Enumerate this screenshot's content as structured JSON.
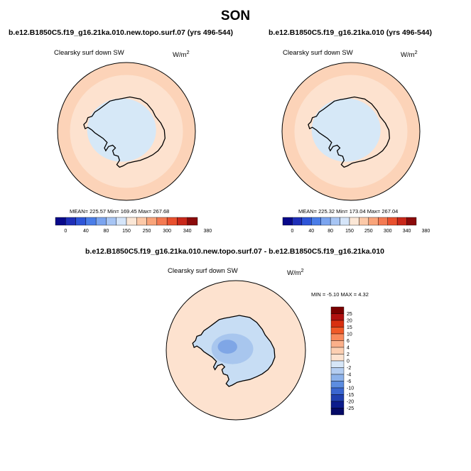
{
  "title": "SON",
  "colors": {
    "ocean": "#fde2cf",
    "ring_outer": "#fcd3b8",
    "ice": "#d6e8f7",
    "ice_diff_light": "#c7ddf4",
    "ice_diff_mid": "#a8c6ee",
    "ice_diff_dark": "#7fa6e6",
    "coast": "#000000"
  },
  "chart_data": [
    {
      "type": "map",
      "panel": "top-left",
      "title": "b.e12.B1850C5.f19_g16.21ka.010.new.topo.surf.07 (yrs 496-544)",
      "variable": "Clearsky surf down SW",
      "units_base": "W/m",
      "units_exp": "2",
      "stats": "MEAN= 225.57  Min= 169.45  Max= 267.68",
      "mean": 225.57,
      "min": 169.45,
      "max": 267.68,
      "colorbar": {
        "orientation": "horizontal",
        "levels": [
          "0",
          "40",
          "80",
          "150",
          "250",
          "300",
          "340",
          "380"
        ],
        "colors": [
          "#08088a",
          "#1f2fb8",
          "#2e55d8",
          "#4a7de8",
          "#7ba4ef",
          "#a7c5f4",
          "#d5e5f9",
          "#fbe7d6",
          "#fcc9a8",
          "#f9a47a",
          "#f47a52",
          "#e9502e",
          "#c9281a",
          "#8b0a0a"
        ]
      }
    },
    {
      "type": "map",
      "panel": "top-right",
      "title": "b.e12.B1850C5.f19_g16.21ka.010 (yrs 496-544)",
      "variable": "Clearsky surf down SW",
      "units_base": "W/m",
      "units_exp": "2",
      "stats": "MEAN= 225.32  Min= 173.04  Max= 267.04",
      "mean": 225.32,
      "min": 173.04,
      "max": 267.04,
      "colorbar": {
        "orientation": "horizontal",
        "levels": [
          "0",
          "40",
          "80",
          "150",
          "250",
          "300",
          "340",
          "380"
        ],
        "colors": [
          "#08088a",
          "#1f2fb8",
          "#2e55d8",
          "#4a7de8",
          "#7ba4ef",
          "#a7c5f4",
          "#d5e5f9",
          "#fbe7d6",
          "#fcc9a8",
          "#f9a47a",
          "#f47a52",
          "#e9502e",
          "#c9281a",
          "#8b0a0a"
        ]
      }
    },
    {
      "type": "map",
      "panel": "bottom",
      "title": "b.e12.B1850C5.f19_g16.21ka.010.new.topo.surf.07 - b.e12.B1850C5.f19_g16.21ka.010",
      "variable": "Clearsky surf down SW",
      "units_base": "W/m",
      "units_exp": "2",
      "stats": "MIN =  -5.10 MAX =   4.32",
      "min": -5.1,
      "max": 4.32,
      "colorbar": {
        "orientation": "vertical",
        "levels": [
          "25",
          "20",
          "15",
          "10",
          "6",
          "4",
          "2",
          "0",
          "-2",
          "-4",
          "-6",
          "-10",
          "-15",
          "-20",
          "-25"
        ],
        "colors": [
          "#7a0000",
          "#b01010",
          "#d83010",
          "#f05a28",
          "#f98a5c",
          "#fbb08a",
          "#fccfb2",
          "#fde3d0",
          "#d6e6f7",
          "#b4cdf1",
          "#8db2ea",
          "#5d8de0",
          "#3a66d0",
          "#2040b0",
          "#0c1c8c",
          "#050a66"
        ]
      }
    }
  ]
}
